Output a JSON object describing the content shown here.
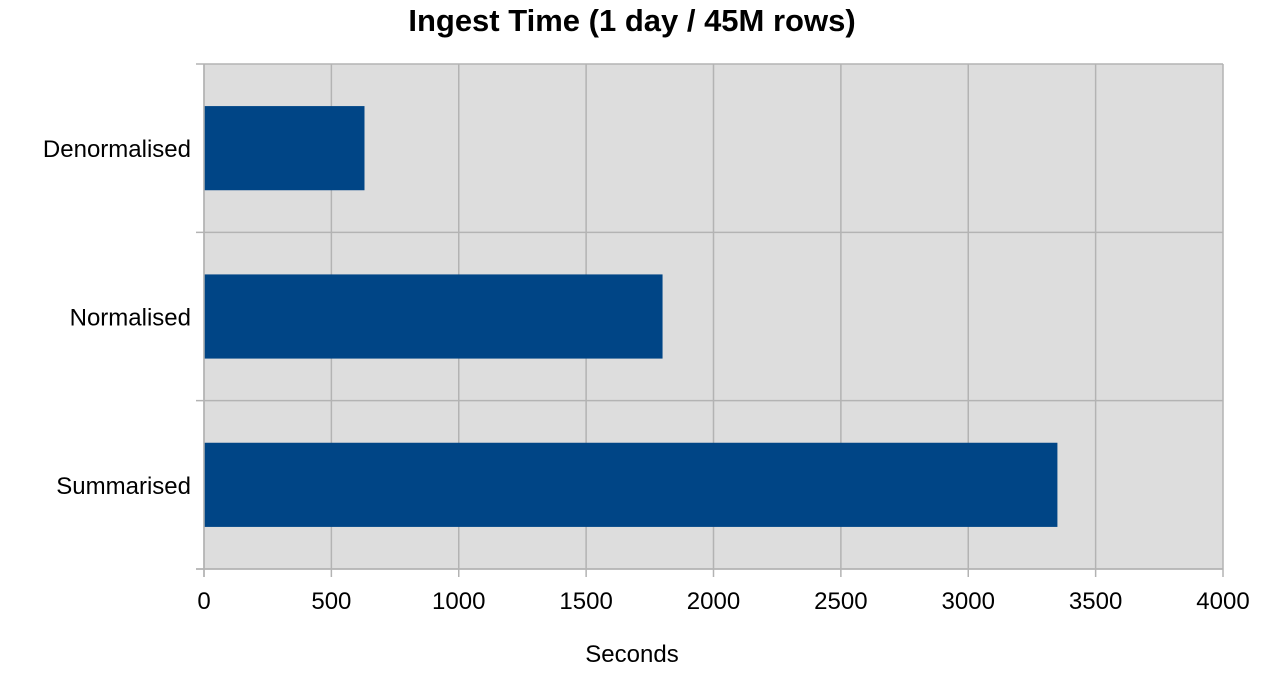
{
  "chart_data": {
    "type": "bar",
    "orientation": "horizontal",
    "title": "Ingest Time (1 day / 45M rows)",
    "xlabel": "Seconds",
    "ylabel": "",
    "categories": [
      "Denormalised",
      "Normalised",
      "Summarised"
    ],
    "values": [
      630,
      1800,
      3350
    ],
    "xlim": [
      0,
      4000
    ],
    "xticks": [
      0,
      500,
      1000,
      1500,
      2000,
      2500,
      3000,
      3500,
      4000
    ],
    "xtick_labels": [
      "0",
      "500",
      "1000",
      "1500",
      "2000",
      "2500",
      "3000",
      "3500",
      "4000"
    ],
    "grid": true,
    "legend": "none",
    "bar_color": "#004586",
    "plot_background": "#dddddd",
    "grid_color": "#b3b3b3"
  }
}
